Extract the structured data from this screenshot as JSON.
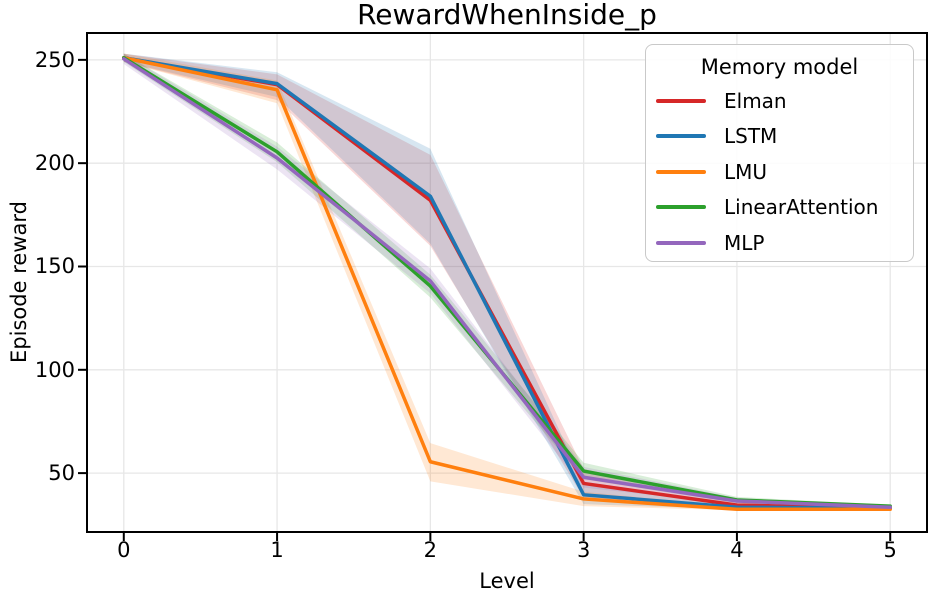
{
  "chart_data": {
    "type": "line",
    "title": "RewardWhenInside_p",
    "xlabel": "Level",
    "ylabel": "Episode reward",
    "legend_title": "Memory model",
    "legend_position": "upper right",
    "grid": true,
    "x": [
      0,
      1,
      2,
      3,
      4,
      5
    ],
    "xticks": [
      0,
      1,
      2,
      3,
      4,
      5
    ],
    "yticks": [
      50,
      100,
      150,
      200,
      250
    ],
    "xlim": [
      -0.24,
      5.24
    ],
    "ylim": [
      21.5,
      263
    ],
    "series": [
      {
        "name": "Elman",
        "color": "#d62728",
        "values": [
          251,
          238,
          182,
          45,
          34.5,
          33
        ],
        "band_lower": [
          249,
          230.5,
          160,
          38,
          33,
          32.5
        ],
        "band_upper": [
          253,
          243,
          204,
          52,
          36,
          34
        ]
      },
      {
        "name": "LSTM",
        "color": "#1f77b4",
        "values": [
          251,
          238.5,
          184,
          39.5,
          33.5,
          33
        ],
        "band_lower": [
          249,
          232,
          161,
          35,
          32.5,
          32.5
        ],
        "band_upper": [
          253,
          244,
          207,
          45,
          35,
          33.5
        ]
      },
      {
        "name": "LMU",
        "color": "#ff7f0e",
        "values": [
          251,
          235.5,
          55.5,
          37.5,
          32.5,
          32.5
        ],
        "band_lower": [
          249,
          229,
          46,
          34,
          32,
          32
        ],
        "band_upper": [
          253,
          240,
          64.5,
          41,
          33.5,
          33
        ]
      },
      {
        "name": "LinearAttention",
        "color": "#2ca02c",
        "values": [
          251,
          205.5,
          140.5,
          51,
          37,
          34
        ],
        "band_lower": [
          249,
          200.5,
          135,
          47,
          35.5,
          33
        ],
        "band_upper": [
          253,
          210,
          146,
          55,
          38.5,
          34.5
        ]
      },
      {
        "name": "MLP",
        "color": "#9467bd",
        "values": [
          250.5,
          202.5,
          143,
          48,
          36.5,
          33.5
        ],
        "band_lower": [
          248,
          197,
          137,
          43,
          35,
          32.5
        ],
        "band_upper": [
          253,
          208,
          149,
          53,
          38,
          34
        ]
      }
    ],
    "style": {
      "grid_color": "#e7e7e7",
      "spine_color": "#000000",
      "band_opacity": 0.18,
      "line_width": 3.5
    }
  }
}
